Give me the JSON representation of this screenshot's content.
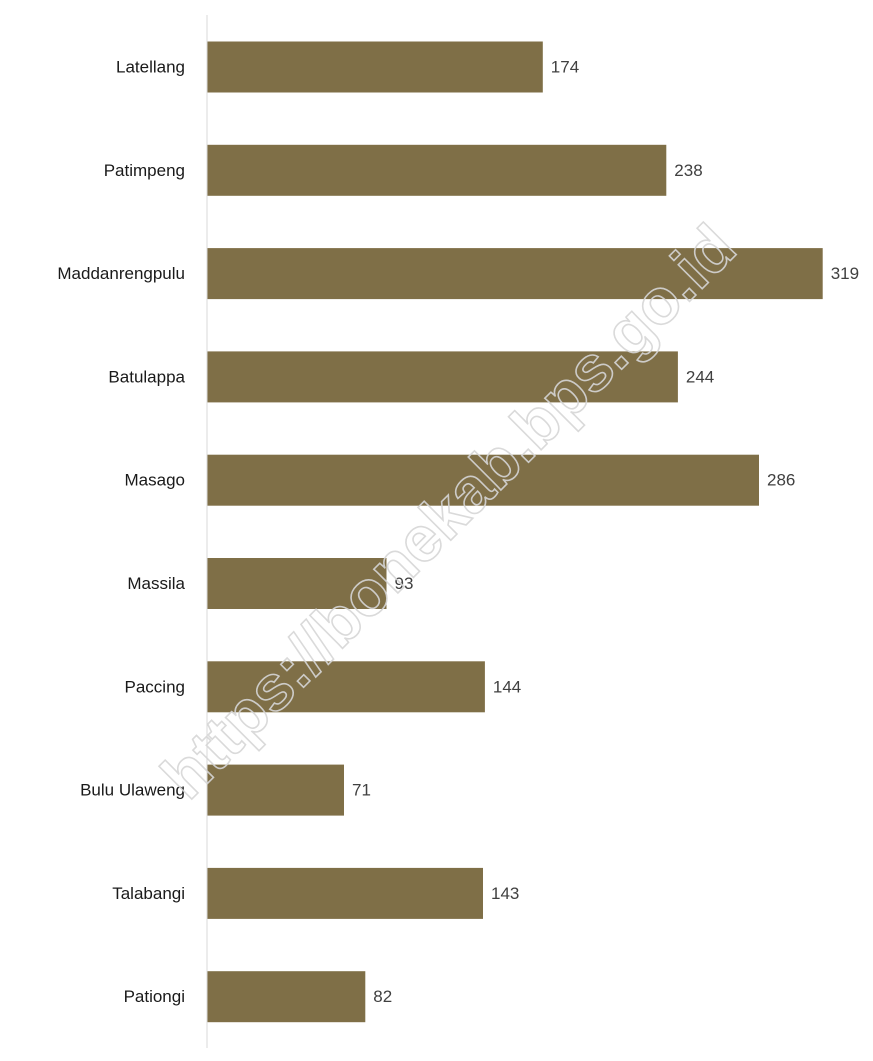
{
  "chart_data": {
    "type": "bar",
    "orientation": "horizontal",
    "categories": [
      "Latellang",
      "Patimpeng",
      "Maddanrengpulu",
      "Batulappa",
      "Masago",
      "Massila",
      "Paccing",
      "Bulu Ulaweng",
      "Talabangi",
      "Pationgi"
    ],
    "values": [
      174,
      238,
      319,
      244,
      286,
      93,
      144,
      71,
      143,
      82
    ],
    "title": "",
    "xlabel": "",
    "ylabel": "",
    "xlim": [
      0,
      340
    ],
    "grid": false,
    "legend": "none",
    "bar_color": "#7f6f47",
    "data_labels": true
  },
  "watermark": {
    "text": "https://bonekab.bps.go.id"
  }
}
